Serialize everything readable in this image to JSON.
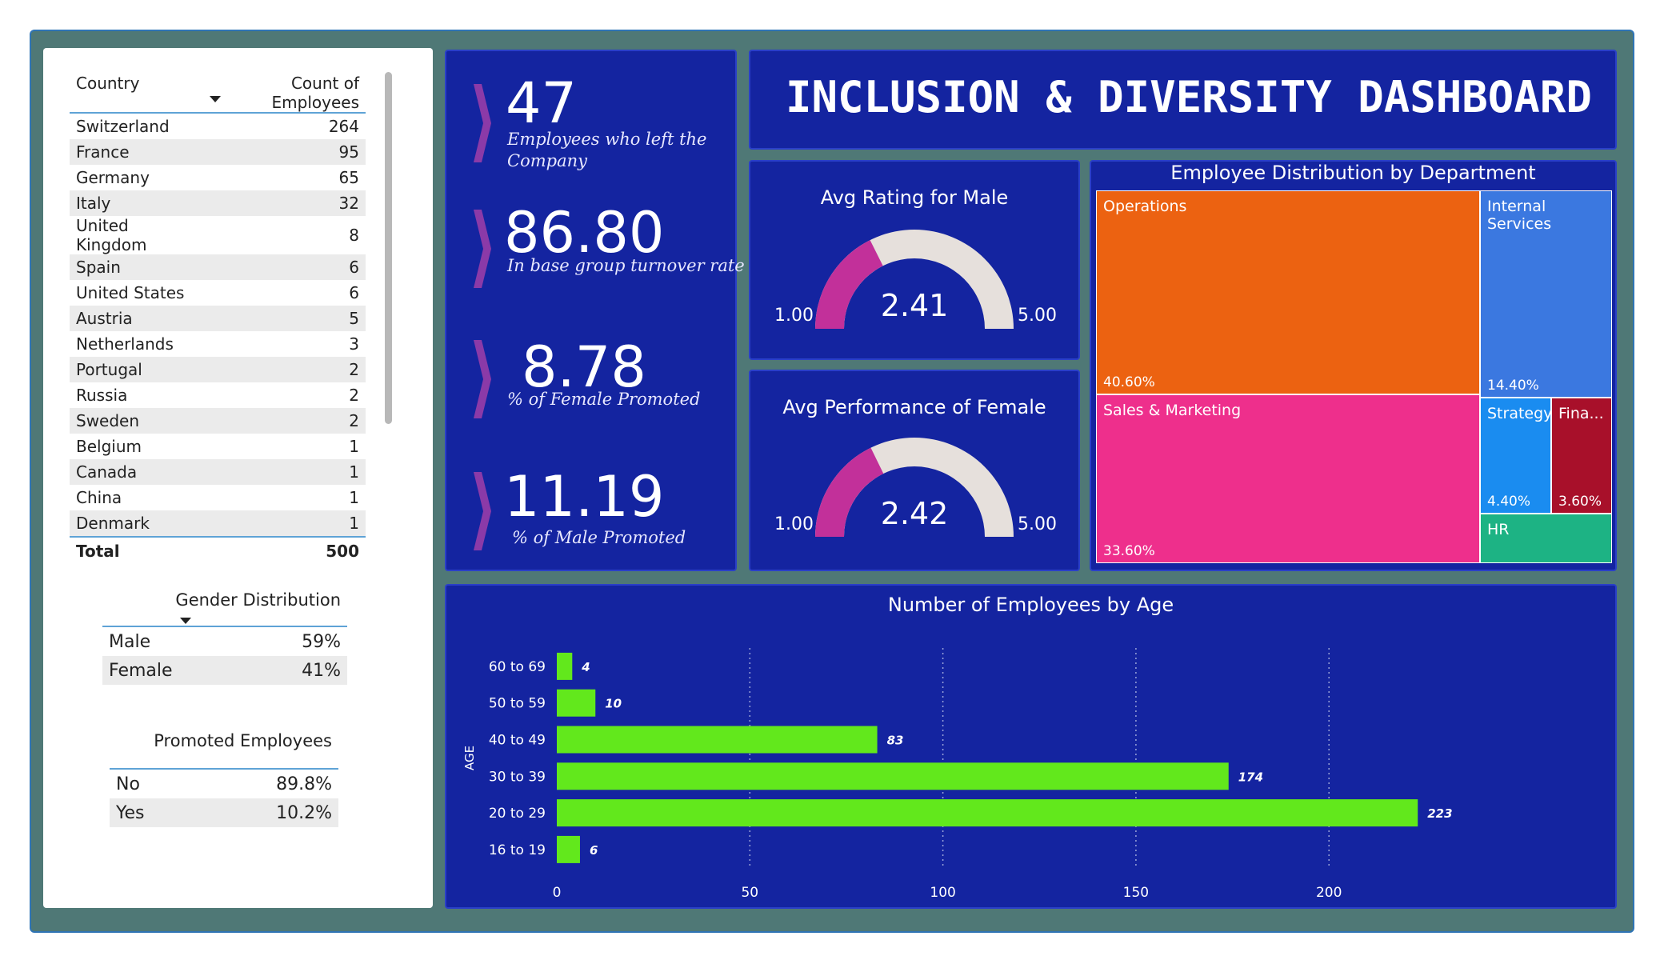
{
  "dashboard_title": "INCLUSION & DIVERSITY DASHBOARD",
  "country_table": {
    "col_country": "Country",
    "col_count": "Count of Employees",
    "rows": [
      {
        "country": "Switzerland",
        "count": "264"
      },
      {
        "country": "France",
        "count": "95"
      },
      {
        "country": "Germany",
        "count": "65"
      },
      {
        "country": "Italy",
        "count": "32"
      },
      {
        "country": "United Kingdom",
        "count": "8"
      },
      {
        "country": "Spain",
        "count": "6"
      },
      {
        "country": "United States",
        "count": "6"
      },
      {
        "country": "Austria",
        "count": "5"
      },
      {
        "country": "Netherlands",
        "count": "3"
      },
      {
        "country": "Portugal",
        "count": "2"
      },
      {
        "country": "Russia",
        "count": "2"
      },
      {
        "country": "Sweden",
        "count": "2"
      },
      {
        "country": "Belgium",
        "count": "1"
      },
      {
        "country": "Canada",
        "count": "1"
      },
      {
        "country": "China",
        "count": "1"
      },
      {
        "country": "Denmark",
        "count": "1"
      }
    ],
    "total_label": "Total",
    "total_value": "500"
  },
  "gender_table": {
    "header": "Gender Distribution",
    "rows": [
      {
        "label": "Male",
        "value": "59%"
      },
      {
        "label": "Female",
        "value": "41%"
      }
    ]
  },
  "promoted_table": {
    "header": "Promoted Employees",
    "rows": [
      {
        "label": "No",
        "value": "89.8%"
      },
      {
        "label": "Yes",
        "value": "10.2%"
      }
    ]
  },
  "kpis": [
    {
      "value": "47",
      "label_line1": "Employees who left the",
      "label_line2": "Company"
    },
    {
      "value": "86.80",
      "label_line1": "In base group turnover rate"
    },
    {
      "value": "8.78",
      "label_line1": "% of Female Promoted"
    },
    {
      "value": "11.19",
      "label_line1": "% of Male Promoted"
    }
  ],
  "gauges": [
    {
      "title": "Avg Rating for Male",
      "value": "2.41",
      "numeric": 2.41,
      "min": "1.00",
      "max": "5.00"
    },
    {
      "title": "Avg Performance of Female",
      "value": "2.42",
      "numeric": 2.42,
      "min": "1.00",
      "max": "5.00"
    }
  ],
  "colors": {
    "background_frame": "#4f7876",
    "card_blue": "#1424a0",
    "gauge_fill": "#c2309a",
    "gauge_track": "#e6e0dc",
    "bar_green": "#62e81c",
    "operations": "#ec6211",
    "internal_services": "#3b78e0",
    "sales_marketing": "#ee2f8c",
    "strategy": "#1a8cf0",
    "finance": "#a8102a",
    "hr": "#1db384"
  },
  "treemap": {
    "title": "Employee Distribution by Department",
    "cells": [
      {
        "name": "Operations",
        "pct": "40.60%"
      },
      {
        "name": "Internal Services",
        "pct": "14.40%"
      },
      {
        "name": "Sales & Marketing",
        "pct": "33.60%"
      },
      {
        "name": "Strategy",
        "pct": "4.40%"
      },
      {
        "name": "Fina...",
        "pct": "3.60%"
      },
      {
        "name": "HR",
        "pct": ""
      }
    ]
  },
  "chart_data": {
    "type": "bar",
    "orientation": "horizontal",
    "title": "Number of Employees by Age",
    "ylabel": "AGE",
    "xlabel": "",
    "categories": [
      "60 to 69",
      "50 to 59",
      "40 to 49",
      "30 to 39",
      "20 to 29",
      "16 to 19"
    ],
    "values": [
      4,
      10,
      83,
      174,
      223,
      6
    ],
    "xlim": [
      0,
      230
    ],
    "xticks": [
      "0",
      "50",
      "100",
      "150",
      "200"
    ],
    "grid": true
  }
}
